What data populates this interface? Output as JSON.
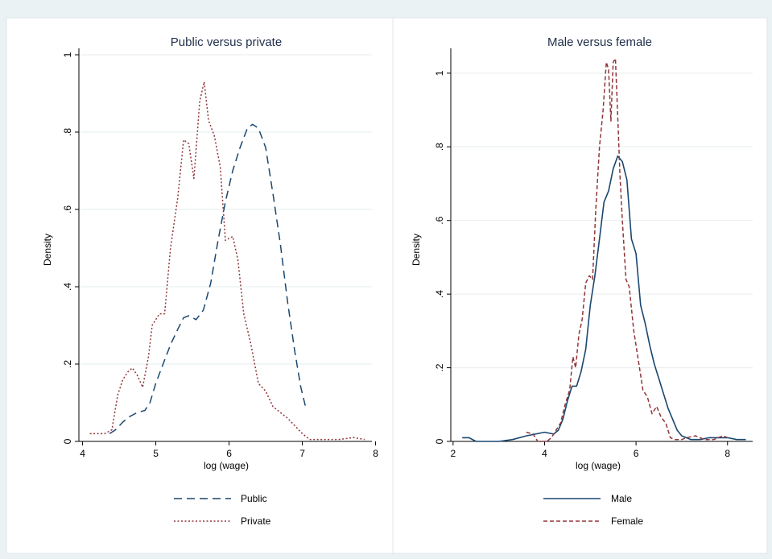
{
  "chart_data": [
    {
      "type": "line",
      "title": "Public versus private",
      "xlabel": "log (wage)",
      "ylabel": "Density",
      "xlim": [
        3.95,
        7.95
      ],
      "ylim": [
        0,
        1.0
      ],
      "xticks": [
        4,
        5,
        6,
        7,
        8
      ],
      "yticks": [
        0,
        0.2,
        0.4,
        0.6,
        0.8,
        1
      ],
      "ytick_labels": [
        "0",
        ".2",
        ".4",
        ".6",
        ".8",
        "1"
      ],
      "grid": true,
      "legend_position": "bottom",
      "series": [
        {
          "name": "Public",
          "color": "#1a476f",
          "dash": "long-dash",
          "x": [
            4.37,
            4.45,
            4.55,
            4.65,
            4.75,
            4.85,
            4.92,
            5.0,
            5.1,
            5.2,
            5.3,
            5.38,
            5.45,
            5.55,
            5.65,
            5.75,
            5.85,
            5.95,
            6.05,
            6.15,
            6.25,
            6.32,
            6.4,
            6.5,
            6.6,
            6.7,
            6.8,
            6.9,
            6.98,
            7.05
          ],
          "y": [
            0.02,
            0.03,
            0.05,
            0.065,
            0.075,
            0.08,
            0.1,
            0.15,
            0.2,
            0.25,
            0.29,
            0.32,
            0.325,
            0.315,
            0.34,
            0.41,
            0.52,
            0.62,
            0.7,
            0.76,
            0.81,
            0.82,
            0.81,
            0.76,
            0.64,
            0.51,
            0.36,
            0.23,
            0.14,
            0.085
          ]
        },
        {
          "name": "Private",
          "color": "#90353b",
          "dash": "short-dash",
          "x": [
            4.1,
            4.2,
            4.3,
            4.4,
            4.48,
            4.55,
            4.62,
            4.68,
            4.75,
            4.82,
            4.9,
            4.95,
            5.05,
            5.12,
            5.2,
            5.3,
            5.38,
            5.45,
            5.52,
            5.6,
            5.66,
            5.72,
            5.8,
            5.88,
            5.95,
            6.05,
            6.12,
            6.2,
            6.3,
            6.4,
            6.5,
            6.6,
            6.8,
            7.0,
            7.1,
            7.3,
            7.5,
            7.7,
            7.85
          ],
          "y": [
            0.02,
            0.02,
            0.02,
            0.03,
            0.12,
            0.16,
            0.18,
            0.19,
            0.17,
            0.14,
            0.22,
            0.3,
            0.33,
            0.33,
            0.5,
            0.63,
            0.78,
            0.77,
            0.68,
            0.88,
            0.93,
            0.83,
            0.79,
            0.71,
            0.52,
            0.53,
            0.47,
            0.33,
            0.25,
            0.15,
            0.13,
            0.09,
            0.06,
            0.02,
            0.005,
            0.005,
            0.005,
            0.01,
            0.005
          ]
        }
      ]
    },
    {
      "type": "line",
      "title": "Male versus female",
      "xlabel": "log (wage)",
      "ylabel": "Density",
      "xlim": [
        1.95,
        8.55
      ],
      "ylim": [
        0,
        1.05
      ],
      "xticks": [
        2,
        4,
        6,
        8
      ],
      "yticks": [
        0,
        0.2,
        0.4,
        0.6,
        0.8,
        1
      ],
      "ytick_labels": [
        "0",
        ".2",
        ".4",
        ".6",
        ".8",
        "1"
      ],
      "grid": true,
      "legend_position": "bottom",
      "series": [
        {
          "name": "Male",
          "color": "#1a476f",
          "dash": "solid",
          "x": [
            2.2,
            2.35,
            2.5,
            2.7,
            3.0,
            3.3,
            3.6,
            3.8,
            4.0,
            4.2,
            4.3,
            4.4,
            4.5,
            4.6,
            4.7,
            4.8,
            4.9,
            5.0,
            5.1,
            5.2,
            5.3,
            5.4,
            5.5,
            5.6,
            5.7,
            5.8,
            5.9,
            6.0,
            6.1,
            6.2,
            6.3,
            6.4,
            6.5,
            6.6,
            6.7,
            6.8,
            6.9,
            7.0,
            7.1,
            7.2,
            7.4,
            7.6,
            7.8,
            8.0,
            8.2,
            8.4
          ],
          "y": [
            0.01,
            0.01,
            0.0,
            0.0,
            0.0,
            0.005,
            0.015,
            0.02,
            0.025,
            0.02,
            0.03,
            0.06,
            0.11,
            0.15,
            0.15,
            0.19,
            0.25,
            0.37,
            0.45,
            0.55,
            0.65,
            0.68,
            0.74,
            0.775,
            0.76,
            0.71,
            0.55,
            0.51,
            0.37,
            0.32,
            0.26,
            0.21,
            0.17,
            0.13,
            0.09,
            0.06,
            0.03,
            0.015,
            0.01,
            0.005,
            0.005,
            0.01,
            0.01,
            0.01,
            0.005,
            0.005
          ]
        },
        {
          "name": "Female",
          "color": "#90353b",
          "dash": "dash",
          "x": [
            3.6,
            3.75,
            3.85,
            3.95,
            4.05,
            4.15,
            4.25,
            4.35,
            4.45,
            4.55,
            4.62,
            4.68,
            4.75,
            4.82,
            4.9,
            4.98,
            5.05,
            5.12,
            5.2,
            5.28,
            5.35,
            5.4,
            5.45,
            5.5,
            5.55,
            5.6,
            5.65,
            5.7,
            5.78,
            5.85,
            5.95,
            6.05,
            6.15,
            6.25,
            6.35,
            6.45,
            6.55,
            6.65,
            6.75,
            6.85,
            7.0,
            7.1,
            7.3,
            7.5,
            7.7,
            7.9,
            8.0
          ],
          "y": [
            0.025,
            0.02,
            0.0,
            0.0,
            0.0,
            0.01,
            0.03,
            0.05,
            0.1,
            0.14,
            0.23,
            0.2,
            0.29,
            0.33,
            0.43,
            0.45,
            0.44,
            0.63,
            0.8,
            0.9,
            1.03,
            1.01,
            0.87,
            1.03,
            1.04,
            0.88,
            0.72,
            0.6,
            0.44,
            0.42,
            0.3,
            0.22,
            0.14,
            0.12,
            0.075,
            0.095,
            0.065,
            0.05,
            0.01,
            0.005,
            0.005,
            0.01,
            0.015,
            0.005,
            0.005,
            0.015,
            0.01
          ]
        }
      ]
    }
  ]
}
